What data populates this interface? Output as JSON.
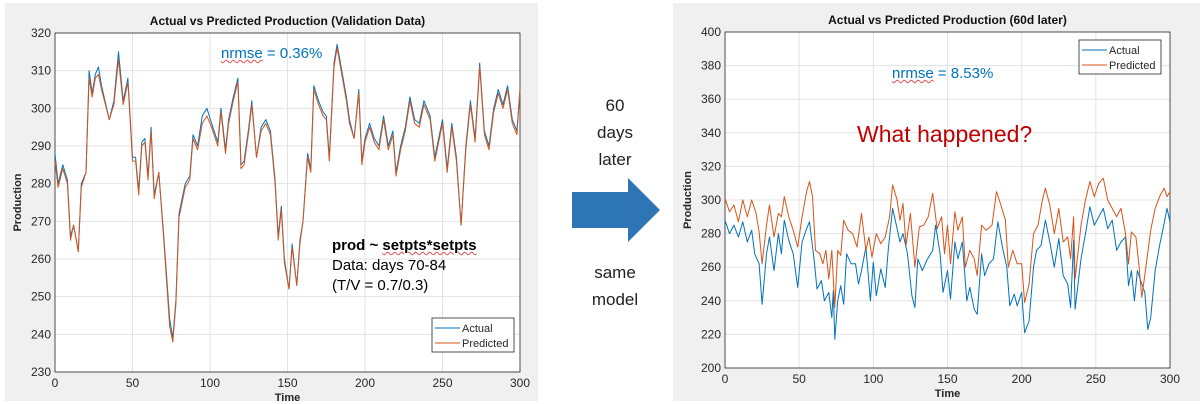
{
  "middle": {
    "top_text": [
      "60",
      "days",
      "later"
    ],
    "bottom_text": [
      "same",
      "model"
    ],
    "arrow_color": "#2E75B6",
    "arrow_icon": "arrow-right-icon"
  },
  "chart_data": [
    {
      "type": "line",
      "title": "Actual vs Predicted Production (Validation Data)",
      "xlabel": "Time",
      "ylabel": "Production",
      "xlim": [
        0,
        300
      ],
      "ylim": [
        230,
        320
      ],
      "xticks": [
        0,
        50,
        100,
        150,
        200,
        250,
        300
      ],
      "yticks": [
        230,
        240,
        250,
        260,
        270,
        280,
        290,
        300,
        310,
        320
      ],
      "grid": true,
      "legend": "bottom-right",
      "annotations": {
        "nrmse_label": "nrmse",
        "nrmse_value": " = 0.36%",
        "model_line1_a": "prod ~ ",
        "model_line1_b": "setpts*setpts",
        "model_line2": "Data: days 70-84",
        "model_line3": "(T/V = 0.7/0.3)"
      },
      "series": [
        {
          "name": "Actual",
          "color": "#0072BD",
          "x": [
            0,
            2,
            5,
            8,
            10,
            12,
            15,
            17,
            20,
            22,
            24,
            26,
            28,
            30,
            35,
            38,
            41,
            44,
            47,
            50,
            52,
            54,
            56,
            58,
            60,
            62,
            64,
            67,
            70,
            74,
            76,
            78,
            80,
            84,
            87,
            89,
            92,
            95,
            98,
            101,
            105,
            107,
            110,
            112,
            115,
            118,
            120,
            122,
            125,
            127,
            130,
            133,
            136,
            139,
            142,
            144,
            146,
            148,
            151,
            153,
            156,
            158,
            160,
            163,
            165,
            167,
            170,
            173,
            175,
            177,
            180,
            182,
            185,
            188,
            190,
            193,
            196,
            198,
            200,
            203,
            206,
            209,
            212,
            215,
            218,
            220,
            223,
            226,
            229,
            232,
            235,
            238,
            242,
            245,
            248,
            250,
            253,
            256,
            259,
            262,
            265,
            268,
            271,
            274,
            277,
            280,
            283,
            286,
            289,
            292,
            295,
            298,
            300
          ],
          "y": [
            288,
            280,
            285,
            281,
            266,
            269,
            262,
            280,
            283,
            310,
            304,
            309,
            311,
            306,
            297,
            302,
            315,
            302,
            308,
            287,
            287,
            278,
            291,
            292,
            282,
            295,
            277,
            283,
            267,
            244,
            239,
            249,
            272,
            280,
            282,
            293,
            290,
            298,
            300,
            296,
            291,
            300,
            289,
            297,
            303,
            308,
            285,
            286,
            295,
            302,
            287,
            295,
            297,
            294,
            281,
            266,
            274,
            260,
            252,
            264,
            253,
            265,
            270,
            288,
            284,
            306,
            302,
            299,
            298,
            287,
            312,
            317,
            310,
            303,
            297,
            292,
            305,
            286,
            292,
            296,
            292,
            290,
            298,
            290,
            294,
            283,
            290,
            295,
            303,
            297,
            296,
            302,
            298,
            287,
            293,
            297,
            284,
            296,
            287,
            269,
            290,
            302,
            292,
            312,
            294,
            290,
            300,
            305,
            301,
            306,
            297,
            294,
            305
          ]
        },
        {
          "name": "Predicted",
          "color": "#D95319",
          "x": [
            0,
            2,
            5,
            8,
            10,
            12,
            15,
            17,
            20,
            22,
            24,
            26,
            28,
            30,
            35,
            38,
            41,
            44,
            47,
            50,
            52,
            54,
            56,
            58,
            60,
            62,
            64,
            67,
            70,
            74,
            76,
            78,
            80,
            84,
            87,
            89,
            92,
            95,
            98,
            101,
            105,
            107,
            110,
            112,
            115,
            118,
            120,
            122,
            125,
            127,
            130,
            133,
            136,
            139,
            142,
            144,
            146,
            148,
            151,
            153,
            156,
            158,
            160,
            163,
            165,
            167,
            170,
            173,
            175,
            177,
            180,
            182,
            185,
            188,
            190,
            193,
            196,
            198,
            200,
            203,
            206,
            209,
            212,
            215,
            218,
            220,
            223,
            226,
            229,
            232,
            235,
            238,
            242,
            245,
            248,
            250,
            253,
            256,
            259,
            262,
            265,
            268,
            271,
            274,
            277,
            280,
            283,
            286,
            289,
            292,
            295,
            298,
            300
          ],
          "y": [
            286,
            279,
            284,
            280,
            265,
            269,
            262,
            279,
            283,
            308,
            303,
            308,
            309,
            305,
            297,
            301,
            313,
            301,
            307,
            286,
            286,
            277,
            290,
            291,
            281,
            294,
            276,
            283,
            266,
            242,
            238,
            248,
            271,
            279,
            281,
            292,
            289,
            296,
            298,
            295,
            290,
            299,
            288,
            296,
            302,
            307,
            284,
            285,
            294,
            301,
            287,
            294,
            296,
            293,
            280,
            265,
            273,
            259,
            252,
            263,
            253,
            264,
            270,
            287,
            283,
            305,
            301,
            298,
            297,
            286,
            311,
            316,
            309,
            302,
            296,
            292,
            304,
            285,
            291,
            295,
            291,
            289,
            297,
            289,
            293,
            282,
            289,
            294,
            302,
            296,
            295,
            301,
            297,
            286,
            292,
            296,
            283,
            295,
            286,
            269,
            289,
            301,
            291,
            311,
            293,
            289,
            299,
            304,
            300,
            305,
            296,
            293,
            305
          ]
        }
      ]
    },
    {
      "type": "line",
      "title": "Actual vs Predicted Production (60d later)",
      "xlabel": "Time",
      "ylabel": "Production",
      "xlim": [
        0,
        300
      ],
      "ylim": [
        200,
        400
      ],
      "xticks": [
        0,
        50,
        100,
        150,
        200,
        250,
        300
      ],
      "yticks": [
        200,
        220,
        240,
        260,
        280,
        300,
        320,
        340,
        360,
        380,
        400
      ],
      "grid": true,
      "legend": "top-right",
      "annotations": {
        "nrmse_label": "nrmse",
        "nrmse_value": " = 8.53%",
        "question": "What happened?"
      },
      "series": [
        {
          "name": "Actual",
          "color": "#0072BD",
          "x": [
            0,
            3,
            6,
            9,
            12,
            15,
            18,
            20,
            23,
            25,
            28,
            30,
            33,
            36,
            38,
            40,
            43,
            46,
            49,
            52,
            55,
            57,
            60,
            62,
            65,
            67,
            70,
            72,
            73,
            74,
            76,
            78,
            80,
            82,
            85,
            88,
            90,
            92,
            95,
            98,
            100,
            102,
            105,
            108,
            110,
            113,
            116,
            118,
            120,
            123,
            126,
            128,
            130,
            133,
            136,
            140,
            142,
            145,
            147,
            150,
            152,
            155,
            157,
            160,
            163,
            165,
            168,
            170,
            173,
            175,
            178,
            181,
            184,
            187,
            190,
            192,
            195,
            197,
            200,
            202,
            205,
            208,
            210,
            213,
            216,
            219,
            222,
            225,
            228,
            231,
            233,
            235,
            236,
            240,
            243,
            246,
            249,
            252,
            255,
            258,
            261,
            264,
            267,
            270,
            272,
            274,
            276,
            278,
            281,
            283,
            285,
            287,
            290,
            293,
            296,
            298,
            300
          ],
          "y": [
            288,
            280,
            285,
            278,
            287,
            275,
            282,
            268,
            262,
            238,
            268,
            278,
            258,
            280,
            268,
            288,
            276,
            268,
            248,
            275,
            283,
            287,
            265,
            247,
            252,
            240,
            245,
            230,
            246,
            217,
            240,
            249,
            238,
            268,
            262,
            262,
            250,
            258,
            272,
            240,
            263,
            243,
            259,
            248,
            270,
            295,
            283,
            275,
            280,
            268,
            243,
            236,
            265,
            258,
            264,
            270,
            285,
            268,
            245,
            258,
            241,
            275,
            265,
            275,
            240,
            248,
            235,
            232,
            268,
            255,
            262,
            265,
            287,
            272,
            260,
            237,
            244,
            237,
            245,
            221,
            228,
            260,
            270,
            273,
            288,
            275,
            260,
            277,
            255,
            250,
            236,
            276,
            235,
            265,
            280,
            296,
            285,
            290,
            295,
            283,
            288,
            270,
            275,
            278,
            249,
            258,
            240,
            258,
            250,
            245,
            223,
            230,
            258,
            273,
            286,
            295,
            287
          ]
        },
        {
          "name": "Predicted",
          "color": "#D95319",
          "x": [
            0,
            3,
            6,
            9,
            12,
            15,
            18,
            21,
            23,
            25,
            28,
            30,
            33,
            36,
            38,
            40,
            43,
            46,
            49,
            52,
            55,
            57,
            59,
            61,
            64,
            66,
            68,
            70,
            72,
            74,
            76,
            78,
            80,
            83,
            86,
            89,
            92,
            95,
            97,
            99,
            102,
            105,
            108,
            111,
            113,
            116,
            118,
            120,
            122,
            125,
            128,
            131,
            134,
            137,
            140,
            143,
            146,
            148,
            150,
            152,
            155,
            157,
            160,
            162,
            165,
            168,
            170,
            173,
            176,
            180,
            183,
            186,
            189,
            191,
            194,
            197,
            200,
            202,
            205,
            208,
            211,
            214,
            216,
            219,
            222,
            225,
            228,
            231,
            233,
            235,
            236,
            240,
            243,
            246,
            249,
            252,
            255,
            258,
            261,
            264,
            267,
            270,
            272,
            274,
            277,
            279,
            281,
            284,
            287,
            290,
            293,
            296,
            298,
            300
          ],
          "y": [
            301,
            293,
            297,
            287,
            300,
            290,
            300,
            292,
            281,
            262,
            285,
            297,
            278,
            292,
            290,
            302,
            290,
            282,
            272,
            290,
            305,
            311,
            302,
            270,
            268,
            262,
            270,
            253,
            270,
            236,
            270,
            267,
            288,
            282,
            280,
            272,
            292,
            270,
            278,
            266,
            280,
            274,
            278,
            290,
            309,
            300,
            288,
            298,
            273,
            292,
            260,
            284,
            285,
            290,
            304,
            283,
            290,
            268,
            285,
            262,
            293,
            282,
            290,
            260,
            270,
            265,
            255,
            285,
            282,
            285,
            305,
            297,
            288,
            260,
            270,
            262,
            262,
            239,
            250,
            280,
            285,
            300,
            307,
            297,
            280,
            295,
            275,
            278,
            265,
            290,
            253,
            285,
            300,
            311,
            302,
            310,
            313,
            300,
            295,
            290,
            295,
            280,
            262,
            281,
            278,
            262,
            242,
            262,
            282,
            295,
            302,
            307,
            302,
            305
          ]
        }
      ]
    }
  ]
}
